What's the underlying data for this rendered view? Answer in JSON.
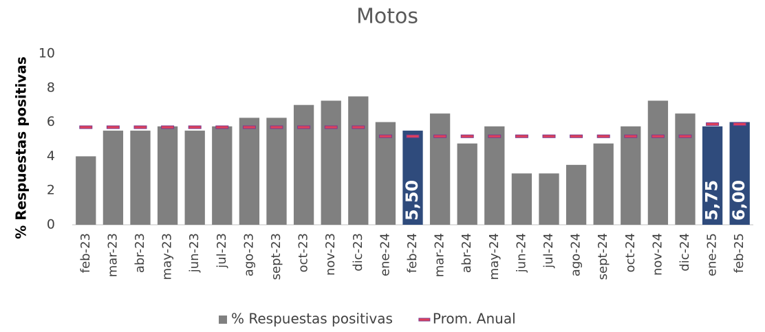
{
  "chart_data": {
    "type": "bar",
    "title": "Motos",
    "y_label": "% Respuestas positivas",
    "categories": [
      "feb-23",
      "mar-23",
      "abr-23",
      "may-23",
      "jun-23",
      "jul-23",
      "ago-23",
      "sept-23",
      "oct-23",
      "nov-23",
      "dic-23",
      "ene-24",
      "feb-24",
      "mar-24",
      "abr-24",
      "may-24",
      "jun-24",
      "jul-24",
      "ago-24",
      "sept-24",
      "oct-24",
      "nov-24",
      "dic-24",
      "ene-25",
      "feb-25"
    ],
    "series": [
      {
        "name": "% Respuestas positivas",
        "type": "bar",
        "color": "#808080",
        "highlight_color": "#2f4b7c",
        "values": [
          4.0,
          5.5,
          5.5,
          5.75,
          5.5,
          5.75,
          6.25,
          6.25,
          7.0,
          7.25,
          7.5,
          6.0,
          5.5,
          6.5,
          4.75,
          5.75,
          3.0,
          3.0,
          3.5,
          4.75,
          5.75,
          7.25,
          6.5,
          5.75,
          6.0
        ],
        "value_labels": [
          null,
          null,
          null,
          null,
          null,
          null,
          null,
          null,
          null,
          null,
          null,
          null,
          "5,50",
          null,
          null,
          null,
          null,
          null,
          null,
          null,
          null,
          null,
          null,
          "5,75",
          "6,00"
        ]
      },
      {
        "name": "Prom. Anual",
        "type": "dash",
        "color": "#e0405a",
        "edge_color": "#7a3b8f",
        "values": [
          5.7,
          5.7,
          5.7,
          5.7,
          5.7,
          5.7,
          5.7,
          5.7,
          5.7,
          5.7,
          5.7,
          5.17,
          5.17,
          5.17,
          5.17,
          5.17,
          5.17,
          5.17,
          5.17,
          5.17,
          5.17,
          5.17,
          5.17,
          5.88,
          5.88
        ]
      }
    ],
    "ylim": [
      0,
      10
    ],
    "yticks": [
      0,
      2,
      4,
      6,
      8,
      10
    ],
    "legend": "bottom"
  }
}
